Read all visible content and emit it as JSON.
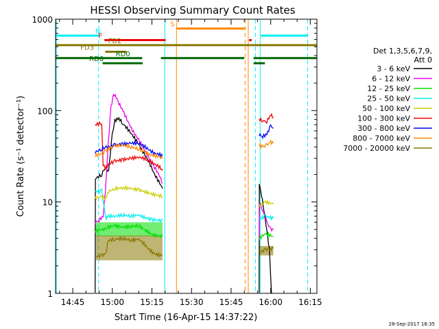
{
  "chart_data": {
    "type": "line",
    "title": "HESSI Observing Summary Count Rates",
    "xlabel": "Start Time (16-Apr-15 14:37:22)",
    "ylabel": "Count Rate (s⁻¹ detector⁻¹)",
    "y_scale": "log",
    "ylim": [
      1,
      1000
    ],
    "xlim_minutes": [
      38.5,
      137.5
    ],
    "x_ticks": [
      {
        "label": "14:45",
        "minute": 45
      },
      {
        "label": "15:00",
        "minute": 60
      },
      {
        "label": "15:15",
        "minute": 75
      },
      {
        "label": "15:30",
        "minute": 90
      },
      {
        "label": "15:45",
        "minute": 105
      },
      {
        "label": "16:00",
        "minute": 120
      },
      {
        "label": "16:15",
        "minute": 135
      }
    ],
    "y_ticks": [
      {
        "label": "1",
        "value": 1
      },
      {
        "label": "10",
        "value": 10
      },
      {
        "label": "100",
        "value": 100
      },
      {
        "label": "1000",
        "value": 1000
      }
    ],
    "legend": {
      "header": [
        "Det 1,3,5,6,7,9,",
        "Att 0"
      ],
      "placement": "right",
      "entries": [
        {
          "label": "3 - 6 keV",
          "color": "#000000"
        },
        {
          "label": "6 - 12 keV",
          "color": "#ee00ee"
        },
        {
          "label": "12 - 25 keV",
          "color": "#00dd00"
        },
        {
          "label": "25 - 50 keV",
          "color": "#00eeee"
        },
        {
          "label": "50 - 100 keV",
          "color": "#cccc00"
        },
        {
          "label": "100 - 300 keV",
          "color": "#ee0000"
        },
        {
          "label": "300 - 800 keV",
          "color": "#0000ee"
        },
        {
          "label": "800 - 7000 keV",
          "color": "#ff8800"
        },
        {
          "label": "7000 - 20000 keV",
          "color": "#887700"
        }
      ]
    },
    "series": [
      {
        "name": "3 - 6 keV",
        "color": "#000000",
        "segments": [
          [
            [
              53.5,
              1
            ],
            [
              53.6,
              18
            ],
            [
              56,
              20
            ],
            [
              57.3,
              24
            ],
            [
              58.6,
              22
            ],
            [
              60,
              55
            ],
            [
              61,
              78
            ],
            [
              62.5,
              82
            ],
            [
              64,
              72
            ],
            [
              66,
              62
            ],
            [
              68,
              52
            ],
            [
              70,
              43
            ],
            [
              72,
              34
            ],
            [
              74,
              27
            ],
            [
              76,
              20
            ],
            [
              78,
              16
            ],
            [
              79,
              14
            ]
          ],
          [
            [
              115.6,
              1
            ],
            [
              115.7,
              16
            ],
            [
              116.5,
              12
            ],
            [
              117.5,
              8
            ],
            [
              118.5,
              5
            ],
            [
              119.5,
              3
            ],
            [
              120.3,
              1
            ]
          ]
        ]
      },
      {
        "name": "6 - 12 keV",
        "color": "#ee00ee",
        "segments": [
          [
            [
              53.5,
              6
            ],
            [
              55,
              6.3
            ],
            [
              56.5,
              7
            ],
            [
              57.3,
              12
            ],
            [
              58.5,
              45
            ],
            [
              59.5,
              110
            ],
            [
              60.5,
              150
            ],
            [
              61.5,
              140
            ],
            [
              62.5,
              120
            ],
            [
              64,
              100
            ],
            [
              66,
              75
            ],
            [
              68,
              58
            ],
            [
              70,
              48
            ],
            [
              72,
              38
            ],
            [
              74,
              30
            ],
            [
              76,
              24
            ],
            [
              78,
              19
            ],
            [
              79,
              16
            ]
          ],
          [
            [
              115.6,
              4
            ],
            [
              115.8,
              10
            ],
            [
              117,
              8
            ],
            [
              118.5,
              6
            ],
            [
              120,
              5
            ],
            [
              121,
              5
            ]
          ]
        ]
      },
      {
        "name": "12 - 25 keV",
        "color": "#00dd00",
        "segments": [
          [
            [
              53.5,
              4.8
            ],
            [
              56,
              5
            ],
            [
              57.5,
              5
            ],
            [
              58.5,
              5.3
            ],
            [
              61,
              5.5
            ],
            [
              64,
              5.3
            ],
            [
              67,
              5.4
            ],
            [
              70,
              5.5
            ],
            [
              72,
              5
            ],
            [
              74,
              4.6
            ],
            [
              76,
              4.3
            ],
            [
              79,
              4.2
            ]
          ],
          [
            [
              115.6,
              4
            ],
            [
              118,
              4.5
            ],
            [
              121,
              4.2
            ]
          ]
        ]
      },
      {
        "name": "25 - 50 keV",
        "color": "#00eeee",
        "segments": [
          [
            [
              53.5,
              13
            ],
            [
              56,
              13.3
            ],
            [
              57.5,
              6.5
            ],
            [
              58,
              7
            ],
            [
              61,
              7
            ],
            [
              64,
              7.2
            ],
            [
              67,
              7
            ],
            [
              70,
              7.2
            ],
            [
              72,
              6.8
            ],
            [
              75,
              6.4
            ],
            [
              79,
              6.2
            ]
          ],
          [
            [
              115.6,
              6.5
            ],
            [
              118,
              7
            ],
            [
              121,
              6.6
            ]
          ]
        ]
      },
      {
        "name": "50 - 100 keV",
        "color": "#cccc00",
        "segments": [
          [
            [
              53.5,
              11
            ],
            [
              56,
              11.4
            ],
            [
              57.5,
              11
            ],
            [
              58.5,
              13
            ],
            [
              61,
              14
            ],
            [
              64,
              14.3
            ],
            [
              67,
              14
            ],
            [
              70,
              13.6
            ],
            [
              72,
              13
            ],
            [
              74,
              12.5
            ],
            [
              76,
              12
            ],
            [
              79,
              11.5
            ]
          ],
          [
            [
              115.6,
              9
            ],
            [
              118,
              10
            ],
            [
              121,
              9.5
            ]
          ]
        ]
      },
      {
        "name": "100 - 300 keV",
        "color": "#ee0000",
        "segments": [
          [
            [
              53.5,
              70
            ],
            [
              56,
              73
            ],
            [
              56.5,
              26
            ],
            [
              57.3,
              23
            ],
            [
              58.5,
              26
            ],
            [
              61,
              28
            ],
            [
              64,
              29
            ],
            [
              67,
              30
            ],
            [
              70,
              31
            ],
            [
              72,
              30
            ],
            [
              74,
              28
            ],
            [
              76,
              26
            ],
            [
              78,
              24
            ],
            [
              79,
              22
            ]
          ],
          [
            [
              115.6,
              80
            ],
            [
              117,
              78
            ],
            [
              118.5,
              76
            ],
            [
              120,
              90
            ],
            [
              121,
              85
            ]
          ]
        ]
      },
      {
        "name": "300 - 800 keV",
        "color": "#0000ee",
        "segments": [
          [
            [
              53.5,
              35
            ],
            [
              56,
              38
            ],
            [
              57.3,
              40
            ],
            [
              58.5,
              40
            ],
            [
              61,
              42
            ],
            [
              64,
              43
            ],
            [
              67,
              44
            ],
            [
              70,
              44
            ],
            [
              72,
              41
            ],
            [
              74,
              37
            ],
            [
              76,
              34
            ],
            [
              78,
              33
            ],
            [
              79,
              32
            ]
          ],
          [
            [
              115.6,
              55
            ],
            [
              117,
              52
            ],
            [
              118.5,
              55
            ],
            [
              120,
              68
            ],
            [
              121,
              64
            ]
          ]
        ]
      },
      {
        "name": "800 - 7000 keV",
        "color": "#ff8800",
        "segments": [
          [
            [
              53.5,
              32
            ],
            [
              56,
              34
            ],
            [
              57.5,
              36
            ],
            [
              58.5,
              38
            ],
            [
              61,
              41
            ],
            [
              64,
              42
            ],
            [
              67,
              40
            ],
            [
              70,
              38
            ],
            [
              72,
              36
            ],
            [
              74,
              33
            ],
            [
              76,
              32
            ],
            [
              78,
              31
            ],
            [
              79,
              30
            ]
          ],
          [
            [
              115.6,
              42
            ],
            [
              117,
              40
            ],
            [
              118.5,
              42
            ],
            [
              120,
              45
            ],
            [
              121,
              44
            ]
          ]
        ]
      },
      {
        "name": "7000 - 20000 keV",
        "color": "#887700",
        "segments": [
          [
            [
              53.5,
              2.5
            ],
            [
              56,
              2.6
            ],
            [
              57.5,
              2.7
            ],
            [
              58.5,
              3.8
            ],
            [
              61,
              3.9
            ],
            [
              64,
              4
            ],
            [
              67,
              3.8
            ],
            [
              70,
              3.9
            ],
            [
              72,
              3.5
            ],
            [
              74,
              3
            ],
            [
              76,
              2.7
            ],
            [
              79,
              2.6
            ]
          ],
          [
            [
              115.6,
              2.8
            ],
            [
              118,
              3
            ],
            [
              121,
              3.1
            ]
          ]
        ]
      }
    ],
    "shaded_blocks": [
      {
        "series": "12 - 25 keV",
        "x": [
          53.8,
          79
        ],
        "y": [
          4.2,
          6
        ],
        "color": "#00dd00"
      },
      {
        "series": "7000 - 20000 keV",
        "x": [
          53.8,
          79
        ],
        "y": [
          2.3,
          4.3
        ],
        "color": "#887700"
      },
      {
        "series": "7000 - 20000 keV",
        "x": [
          115.8,
          121
        ],
        "y": [
          2.6,
          3.3
        ],
        "color": "#887700"
      }
    ],
    "vertical_lines": [
      {
        "minute": 38.8,
        "color": "#00eeee",
        "style": "solid"
      },
      {
        "minute": 54.8,
        "color": "#00eeee",
        "style": "dashed"
      },
      {
        "minute": 79.9,
        "color": "#00eeee",
        "style": "solid"
      },
      {
        "minute": 84.3,
        "color": "#ff8800",
        "style": "solid"
      },
      {
        "minute": 110.3,
        "color": "#ff8800",
        "style": "dashed"
      },
      {
        "minute": 111.5,
        "color": "#ff8800",
        "style": "solid"
      },
      {
        "minute": 114.2,
        "color": "#00eeee",
        "style": "dashed"
      },
      {
        "minute": 116.0,
        "color": "#00eeee",
        "style": "solid"
      },
      {
        "minute": 134.0,
        "color": "#00eeee",
        "style": "dashed"
      }
    ],
    "flag_bars": [
      {
        "label": "N",
        "color": "#00eeee",
        "intervals": [
          [
            38.5,
            54.7
          ],
          [
            116.3,
            134.0
          ]
        ],
        "level": 660,
        "label_minute": 54.5
      },
      {
        "label": "S",
        "color": "#ff8800",
        "intervals": [
          [
            84.4,
            110.2
          ]
        ],
        "level": 790,
        "label_minute": 82.8
      },
      {
        "label": "F",
        "color": "#ee0000",
        "intervals": [
          [
            57.0,
            80.2
          ],
          [
            111.8,
            112.8
          ]
        ],
        "level": 590,
        "label_minute": 55.5
      },
      {
        "label": "FD2",
        "color": "#887700",
        "intervals": [
          [
            38.5,
            137.5
          ]
        ],
        "level": 520,
        "label_minute": 61.0
      },
      {
        "label": "FD3",
        "color": "#887700",
        "intervals": [
          [
            57.3,
            65.4
          ]
        ],
        "level": 440,
        "label_minute": 50.5
      },
      {
        "label": "RD0",
        "color": "#006600",
        "intervals": [
          [
            38.5,
            71.3
          ],
          [
            78.4,
            110.0
          ],
          [
            113.5,
            137.5
          ]
        ],
        "level": 375,
        "label_minute": 64.0
      },
      {
        "label": "RD6",
        "color": "#006600",
        "intervals": [
          [
            56.3,
            71.5
          ],
          [
            113.5,
            117.8
          ]
        ],
        "level": 330,
        "label_minute": 54.0
      }
    ],
    "footer": "28-Sep-2017 18:35"
  }
}
